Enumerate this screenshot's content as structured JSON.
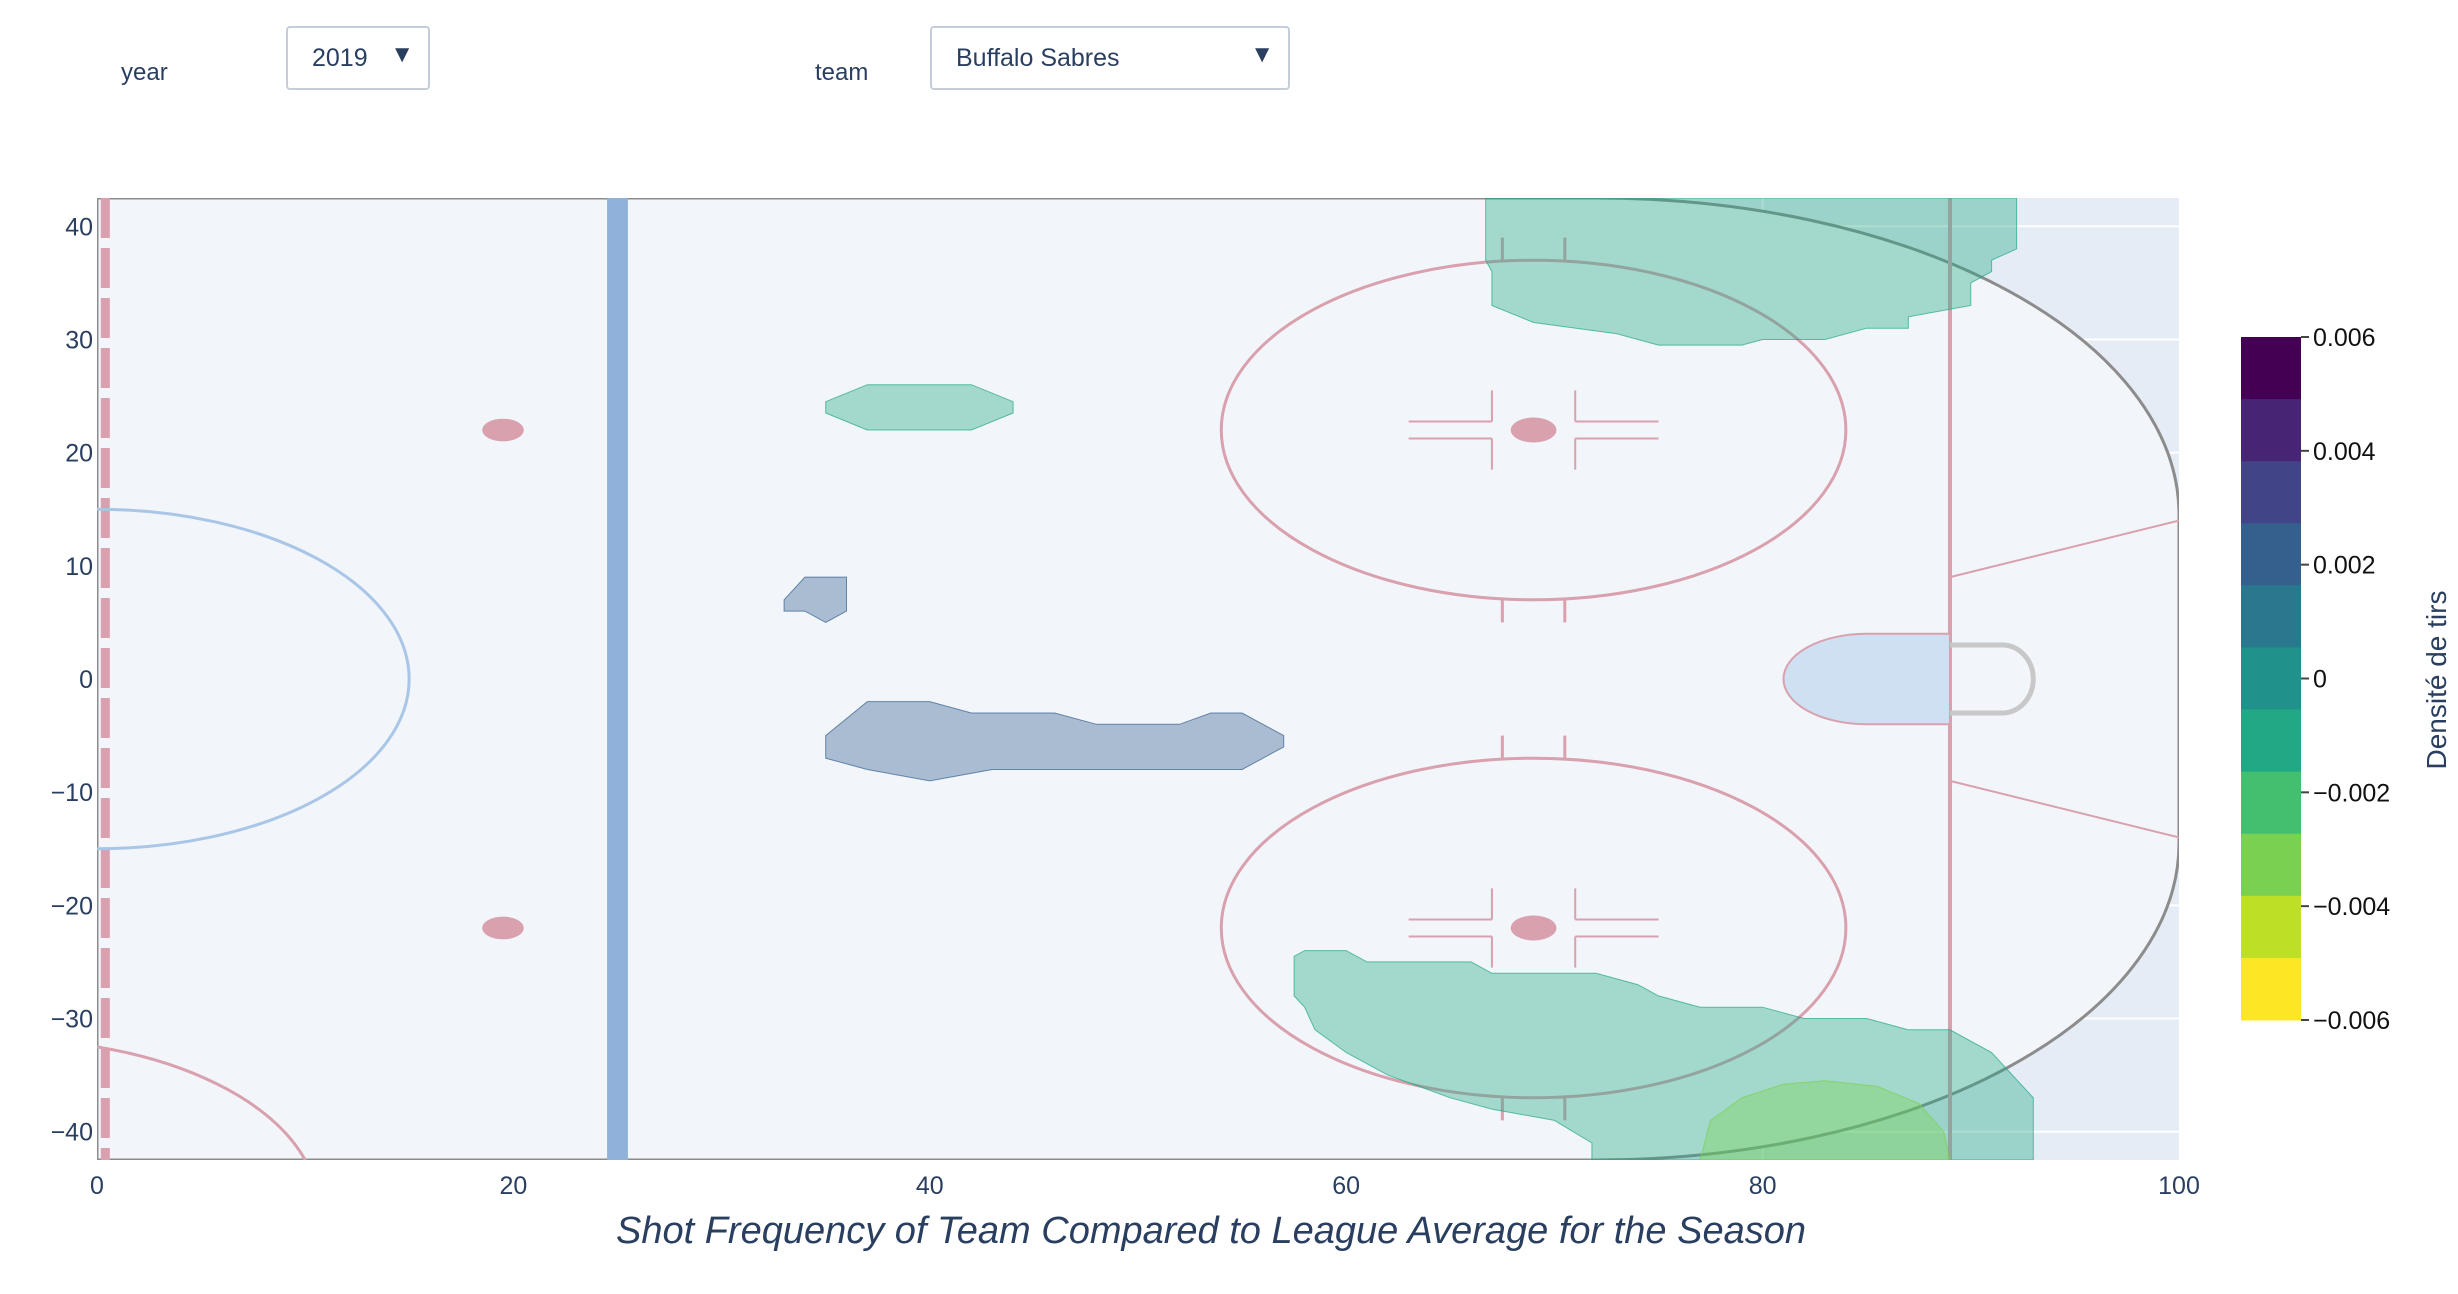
{
  "controls": {
    "year_label": "year",
    "year_value": "2019",
    "team_label": "team",
    "team_value": "Buffalo Sabres",
    "caret_glyph": "▼"
  },
  "chart_data": {
    "type": "contour",
    "title": "Shot Frequency of Team Compared to League Average for the Season",
    "xlabel": "",
    "ylabel": "",
    "xlim": [
      0,
      100
    ],
    "ylim": [
      -42.5,
      42.5
    ],
    "x_ticks": [
      0,
      20,
      40,
      60,
      80,
      100
    ],
    "y_ticks": [
      40,
      30,
      20,
      10,
      0,
      -10,
      -20,
      -30,
      -40
    ],
    "y_tick_labels": [
      "40",
      "30",
      "20",
      "10",
      "0",
      "−10",
      "−20",
      "−30",
      "−40"
    ],
    "grid": true,
    "background": "rink half (offensive zone, NHL coordinates in feet)",
    "colorbar": {
      "title": "Densité de tirs",
      "range": [
        -0.006,
        0.006
      ],
      "ticks": [
        0.006,
        0.004,
        0.002,
        0,
        -0.002,
        -0.004,
        -0.006
      ],
      "tick_labels": [
        "0.006",
        "0.004",
        "0.002",
        "0",
        "−0.002",
        "−0.004",
        "−0.006"
      ],
      "colors": [
        "#440154",
        "#482475",
        "#414487",
        "#355f8d",
        "#2a788e",
        "#21918c",
        "#22a884",
        "#44bf70",
        "#7ad151",
        "#bddf26",
        "#fde725"
      ],
      "colorscale": "viridis (reversed)"
    },
    "regions": [
      {
        "name": "above-average-slot",
        "level": 0.001,
        "color": "#355f8d",
        "points": [
          [
            37,
            -2
          ],
          [
            40,
            -2
          ],
          [
            42,
            -3
          ],
          [
            46,
            -3
          ],
          [
            48,
            -4
          ],
          [
            52,
            -4
          ],
          [
            53.5,
            -3
          ],
          [
            55,
            -3
          ],
          [
            56,
            -4
          ],
          [
            57,
            -5
          ],
          [
            57,
            -6
          ],
          [
            55,
            -8
          ],
          [
            43,
            -8
          ],
          [
            40,
            -9
          ],
          [
            37,
            -8
          ],
          [
            35,
            -7
          ],
          [
            35,
            -5
          ]
        ]
      },
      {
        "name": "above-average-left-circle-edge",
        "level": 0.001,
        "color": "#355f8d",
        "points": [
          [
            33,
            7
          ],
          [
            34,
            9
          ],
          [
            36,
            9
          ],
          [
            36,
            6
          ],
          [
            35,
            5
          ],
          [
            34,
            6
          ],
          [
            33,
            6
          ]
        ]
      },
      {
        "name": "below-average-top-slot",
        "level": -0.0015,
        "color": "#22a884",
        "points": [
          [
            35,
            23.5
          ],
          [
            35,
            24.5
          ],
          [
            37,
            26
          ],
          [
            42,
            26
          ],
          [
            44,
            24.5
          ],
          [
            44,
            23.5
          ],
          [
            42,
            22
          ],
          [
            37,
            22
          ]
        ]
      },
      {
        "name": "below-average-top-boards",
        "level": -0.0015,
        "color": "#22a884",
        "points": [
          [
            66.7,
            42.5
          ],
          [
            92.2,
            42.5
          ],
          [
            92.2,
            38
          ],
          [
            91,
            37
          ],
          [
            91,
            36
          ],
          [
            90,
            35
          ],
          [
            90,
            33
          ],
          [
            87,
            32
          ],
          [
            87,
            31
          ],
          [
            85,
            31
          ],
          [
            83,
            30
          ],
          [
            80,
            30
          ],
          [
            79,
            29.5
          ],
          [
            75,
            29.5
          ],
          [
            73,
            30.5
          ],
          [
            69,
            31.5
          ],
          [
            67,
            33
          ],
          [
            67,
            36
          ],
          [
            66.7,
            37
          ]
        ]
      },
      {
        "name": "below-average-bottom-slot",
        "level": -0.0015,
        "color": "#22a884",
        "points": [
          [
            57.5,
            -24.5
          ],
          [
            58,
            -24
          ],
          [
            60,
            -24
          ],
          [
            61,
            -25
          ],
          [
            66,
            -25
          ],
          [
            67,
            -26
          ],
          [
            72,
            -26
          ],
          [
            74,
            -27
          ],
          [
            75,
            -28
          ],
          [
            77,
            -29
          ],
          [
            80,
            -29
          ],
          [
            82,
            -30
          ],
          [
            85,
            -30
          ],
          [
            87,
            -31
          ],
          [
            89,
            -31
          ],
          [
            91,
            -33
          ],
          [
            92,
            -35
          ],
          [
            93,
            -37
          ],
          [
            93,
            -42.5
          ],
          [
            71.8,
            -42.5
          ],
          [
            71.8,
            -41
          ],
          [
            70,
            -39
          ],
          [
            67,
            -38
          ],
          [
            65,
            -37
          ],
          [
            62,
            -35
          ],
          [
            60,
            -33
          ],
          [
            58.5,
            -31
          ],
          [
            58,
            -29
          ],
          [
            57.5,
            -28
          ]
        ]
      },
      {
        "name": "below-average-bottom-corner",
        "level": -0.004,
        "color": "#7ad151",
        "points": [
          [
            77,
            -42.5
          ],
          [
            77.5,
            -39
          ],
          [
            79,
            -37
          ],
          [
            81,
            -35.8
          ],
          [
            83,
            -35.5
          ],
          [
            85.5,
            -36
          ],
          [
            87.5,
            -37.5
          ],
          [
            88.7,
            -40
          ],
          [
            89,
            -42.5
          ]
        ]
      }
    ]
  }
}
